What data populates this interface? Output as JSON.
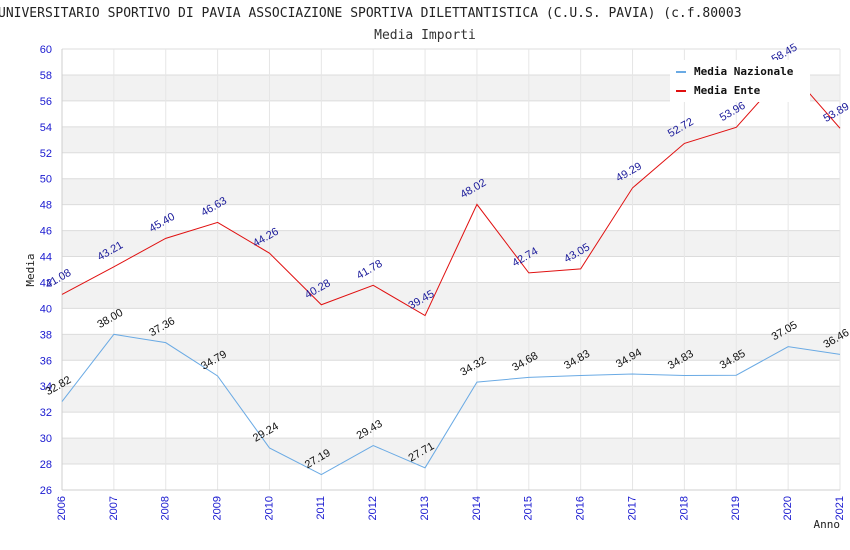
{
  "chart_data": {
    "type": "line",
    "title": "UNIVERSITARIO SPORTIVO DI PAVIA ASSOCIAZIONE SPORTIVA DILETTANTISTICA (C.U.S. PAVIA) (c.f.80003",
    "subtitle": "Media Importi",
    "xlabel": "Anno",
    "ylabel": "Media",
    "ylim": [
      26,
      60
    ],
    "ytick_step": 2,
    "x": [
      "2006",
      "2007",
      "2008",
      "2009",
      "2010",
      "2011",
      "2012",
      "2013",
      "2014",
      "2015",
      "2016",
      "2017",
      "2018",
      "2019",
      "2020",
      "2021"
    ],
    "series": [
      {
        "name": "Media Nazionale",
        "color": "#6aaae4",
        "label_color": "#111111",
        "values": [
          32.82,
          38.0,
          37.36,
          34.79,
          29.24,
          27.19,
          29.43,
          27.71,
          34.32,
          34.68,
          34.83,
          34.94,
          34.83,
          34.85,
          37.05,
          36.46
        ],
        "labels": [
          "32.82",
          "38.00",
          "37.36",
          "34.79",
          "29.24",
          "27.19",
          "29.43",
          "27.71",
          "34.32",
          "34.68",
          "34.83",
          "34.94",
          "34.83",
          "34.85",
          "37.05",
          "36.46"
        ]
      },
      {
        "name": "Media Ente",
        "color": "#e01010",
        "label_color": "#1a1a9a",
        "values": [
          41.08,
          43.21,
          45.4,
          46.63,
          44.26,
          40.28,
          41.78,
          39.45,
          48.02,
          42.74,
          43.05,
          49.29,
          52.72,
          53.96,
          58.45,
          53.89
        ],
        "labels": [
          "41.08",
          "43.21",
          "45.40",
          "46.63",
          "44.26",
          "40.28",
          "41.78",
          "39.45",
          "48.02",
          "42.74",
          "43.05",
          "49.29",
          "52.72",
          "53.96",
          "58.45",
          "53.89"
        ]
      }
    ],
    "legend": "top-right",
    "grid": true
  }
}
